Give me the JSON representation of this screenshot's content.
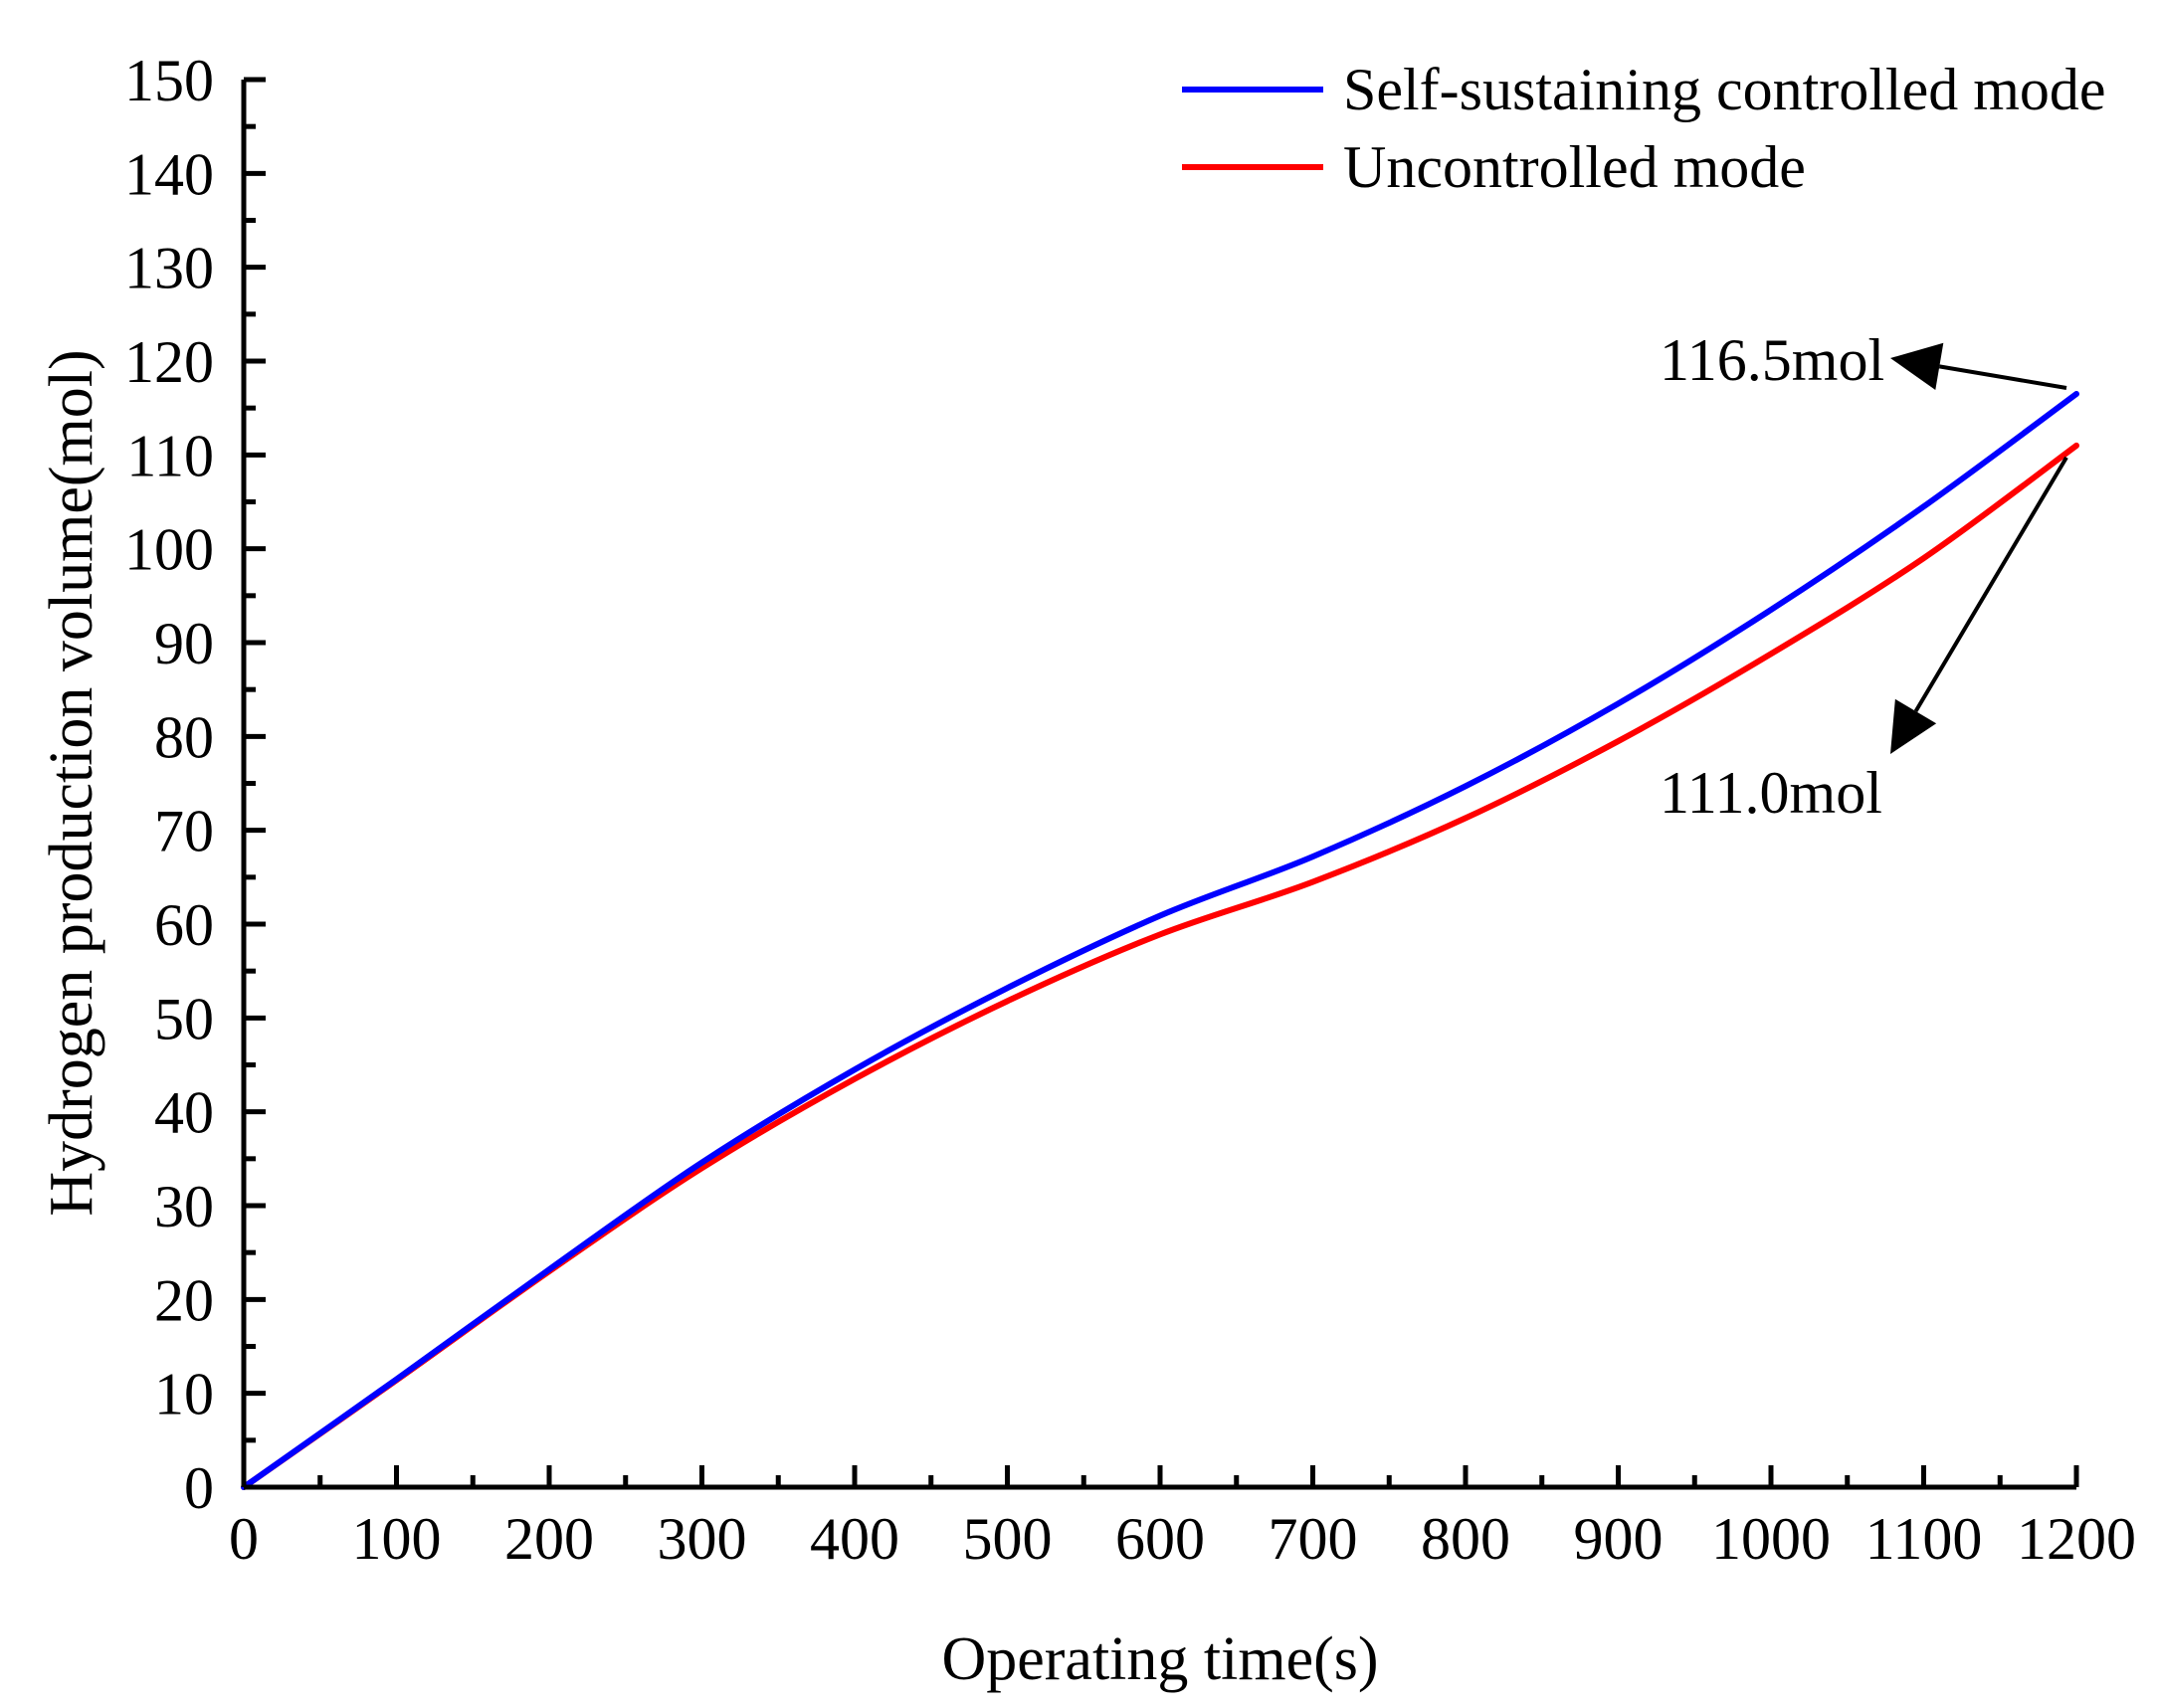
{
  "chart_data": {
    "type": "line",
    "title": "",
    "xlabel": "Operating time(s)",
    "ylabel": "Hydrogen production volume(mol)",
    "xlim": [
      0,
      1200
    ],
    "ylim": [
      0,
      150
    ],
    "xticks": [
      0,
      100,
      200,
      300,
      400,
      500,
      600,
      700,
      800,
      900,
      1000,
      1100,
      1200
    ],
    "yticks": [
      0,
      10,
      20,
      30,
      40,
      50,
      60,
      70,
      80,
      90,
      100,
      110,
      120,
      130,
      140,
      150
    ],
    "grid": false,
    "legend_position": "top-right",
    "series": [
      {
        "name": "Self-sustaining controlled mode",
        "color": "#0000ff",
        "x": [
          0,
          100,
          200,
          300,
          400,
          500,
          600,
          700,
          800,
          900,
          1000,
          1100,
          1200
        ],
        "y": [
          0,
          11.5,
          23.2,
          34.6,
          44.5,
          53.2,
          60.9,
          67.2,
          74.7,
          83.5,
          93.5,
          104.5,
          116.5
        ]
      },
      {
        "name": "Uncontrolled mode",
        "color": "#ff0000",
        "x": [
          0,
          100,
          200,
          300,
          400,
          500,
          600,
          700,
          800,
          900,
          1000,
          1100,
          1200
        ],
        "y": [
          0,
          11.4,
          23.0,
          34.0,
          43.5,
          51.8,
          58.9,
          64.5,
          71.3,
          79.5,
          88.8,
          99.0,
          111.0
        ]
      }
    ],
    "annotations": [
      {
        "text": "116.5mol",
        "x": 1200,
        "y": 116.5,
        "series": 0
      },
      {
        "text": "111.0mol",
        "x": 1200,
        "y": 111.0,
        "series": 1
      }
    ]
  }
}
